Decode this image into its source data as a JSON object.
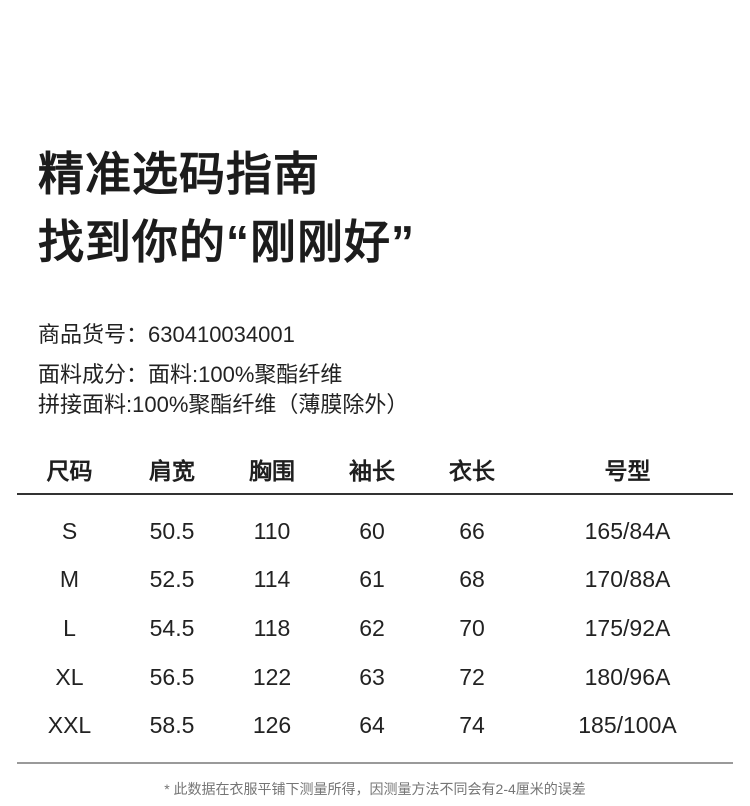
{
  "header": {
    "title_line1": "精准选码指南",
    "title_line2": "找到你的“刚刚好”"
  },
  "product": {
    "sku_label": "商品货号：",
    "sku_value": "630410034001",
    "fabric_label": "面料成分：",
    "fabric_value": "面料:100%聚酯纤维",
    "fabric_line2": "拼接面料:100%聚酯纤维（薄膜除外）"
  },
  "size_table": {
    "columns": [
      "尺码",
      "肩宽",
      "胸围",
      "袖长",
      "衣长",
      "号型"
    ],
    "rows": [
      [
        "S",
        "50.5",
        "110",
        "60",
        "66",
        "165/84A"
      ],
      [
        "M",
        "52.5",
        "114",
        "61",
        "68",
        "170/88A"
      ],
      [
        "L",
        "54.5",
        "118",
        "62",
        "70",
        "175/92A"
      ],
      [
        "XL",
        "56.5",
        "122",
        "63",
        "72",
        "180/96A"
      ],
      [
        "XXL",
        "58.5",
        "126",
        "64",
        "74",
        "185/100A"
      ]
    ]
  },
  "footnote": "* 此数据在衣服平铺下测量所得，因测量方法不同会有2-4厘米的误差",
  "colors": {
    "text_primary": "#1c1c1c",
    "text_body": "#222222",
    "header_rule": "#333333",
    "bottom_rule": "#9a9a9a",
    "footnote_gray": "#757575"
  }
}
